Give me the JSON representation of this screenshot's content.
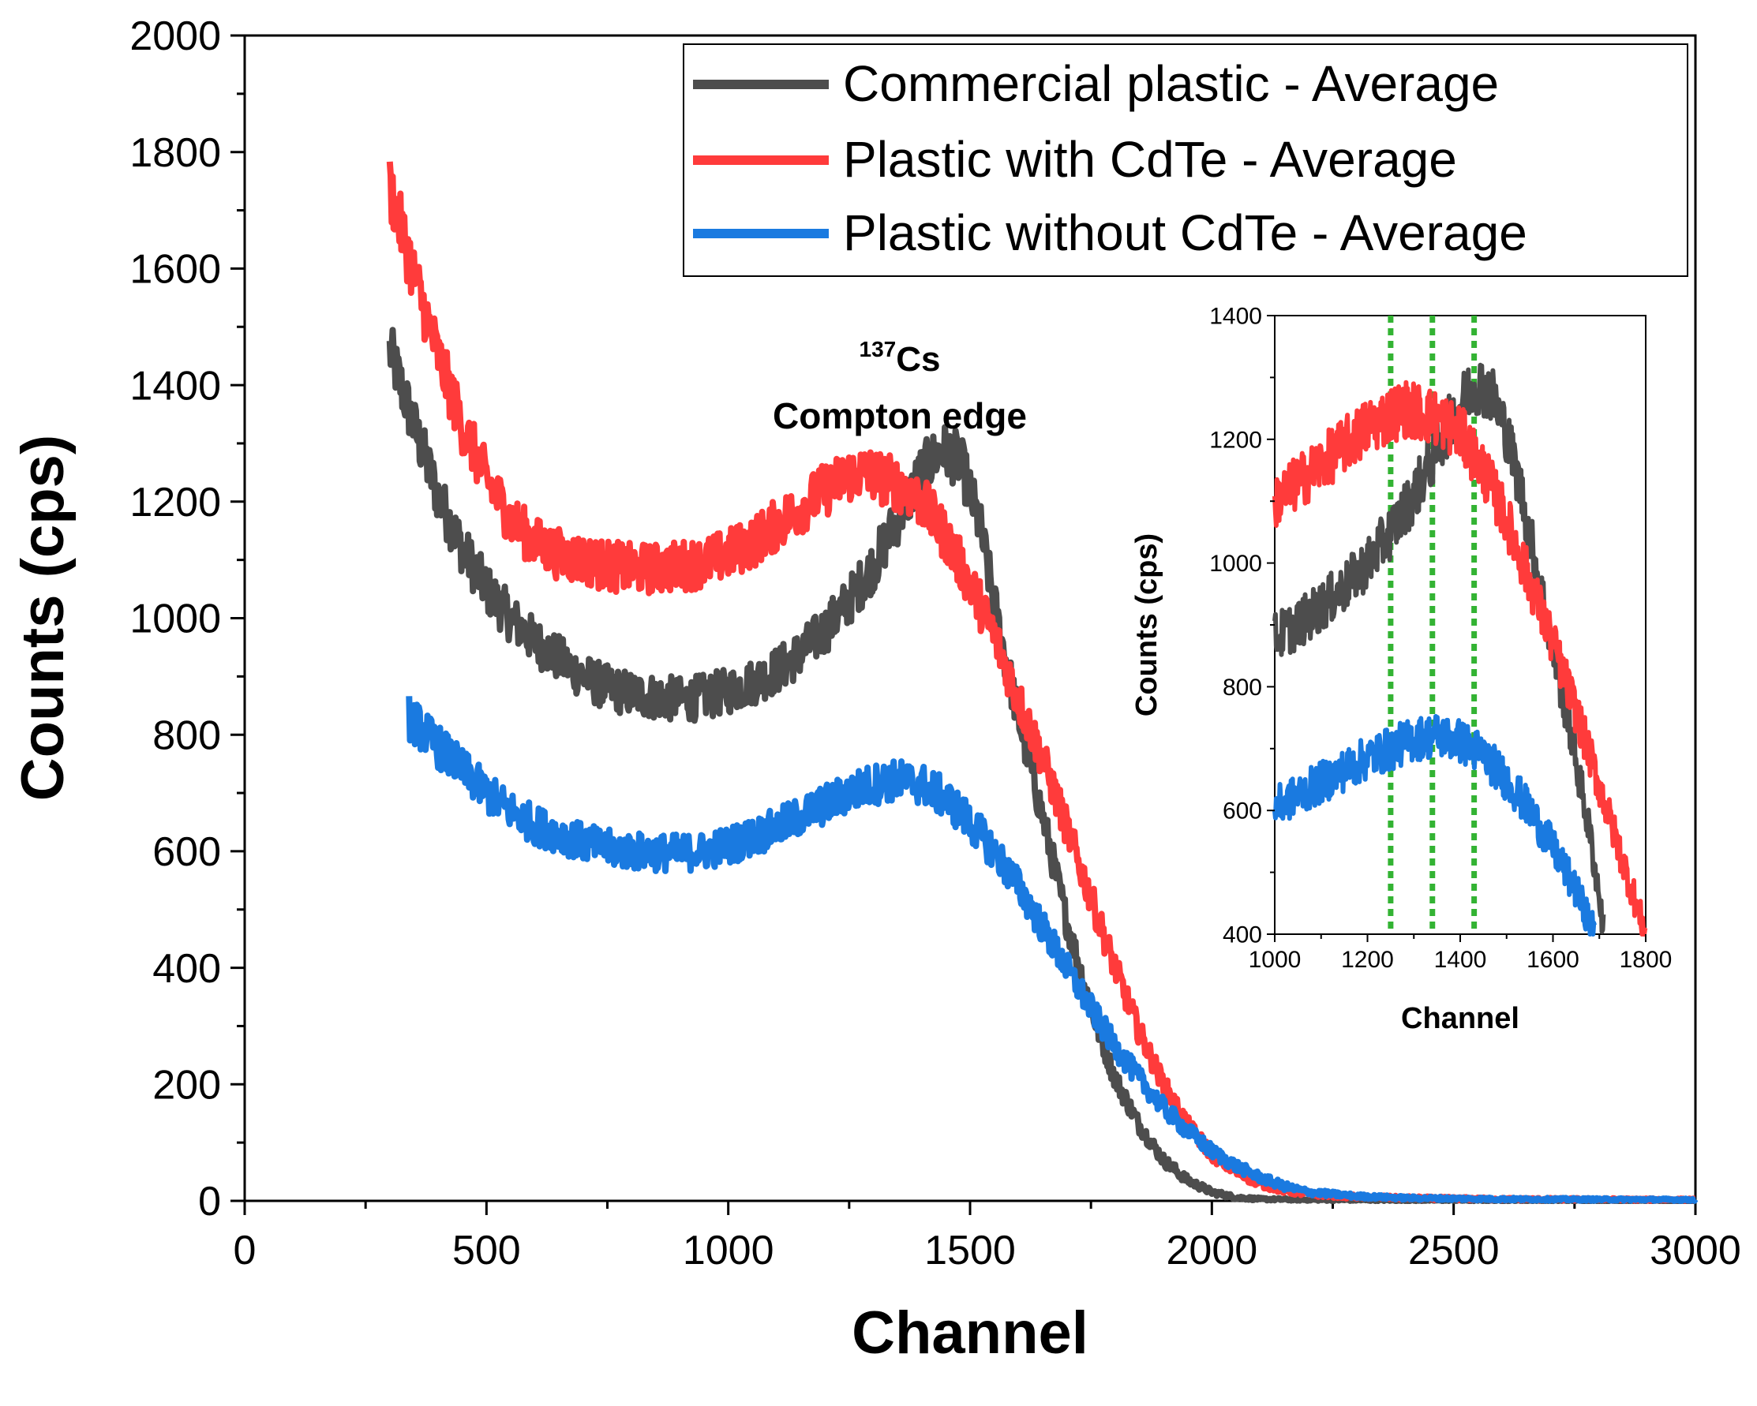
{
  "chart_data": [
    {
      "type": "line",
      "title": "",
      "xlabel": "Channel",
      "ylabel": "Counts (cps)",
      "xlim": [
        0,
        3000
      ],
      "ylim": [
        0,
        2000
      ],
      "xticks": [
        0,
        500,
        1000,
        1500,
        2000,
        2500,
        3000
      ],
      "yticks": [
        0,
        200,
        400,
        600,
        800,
        1000,
        1200,
        1400,
        1600,
        1800,
        2000
      ],
      "grid": false,
      "legend_position": "top-right",
      "annotation": {
        "superscript": "137",
        "isotope": "Cs",
        "line2": "Compton edge"
      },
      "series": [
        {
          "name": "Commercial plastic - Average",
          "color": "#4d4d4d",
          "points": [
            [
              300,
              1460
            ],
            [
              350,
              1330
            ],
            [
              400,
              1210
            ],
            [
              450,
              1120
            ],
            [
              500,
              1050
            ],
            [
              550,
              1000
            ],
            [
              600,
              960
            ],
            [
              650,
              930
            ],
            [
              700,
              900
            ],
            [
              750,
              880
            ],
            [
              800,
              870
            ],
            [
              850,
              865
            ],
            [
              900,
              860
            ],
            [
              950,
              865
            ],
            [
              1000,
              875
            ],
            [
              1050,
              890
            ],
            [
              1100,
              910
            ],
            [
              1150,
              940
            ],
            [
              1200,
              980
            ],
            [
              1250,
              1030
            ],
            [
              1300,
              1090
            ],
            [
              1350,
              1170
            ],
            [
              1400,
              1250
            ],
            [
              1440,
              1290
            ],
            [
              1480,
              1270
            ],
            [
              1520,
              1160
            ],
            [
              1560,
              980
            ],
            [
              1600,
              830
            ],
            [
              1650,
              660
            ],
            [
              1700,
              480
            ],
            [
              1750,
              330
            ],
            [
              1800,
              210
            ],
            [
              1850,
              130
            ],
            [
              1900,
              70
            ],
            [
              1950,
              35
            ],
            [
              2000,
              15
            ],
            [
              2050,
              6
            ],
            [
              2100,
              3
            ],
            [
              2200,
              2
            ],
            [
              2400,
              1
            ],
            [
              3000,
              0
            ]
          ]
        },
        {
          "name": "Plastic with CdTe - Average",
          "color": "#ff3b3b",
          "points": [
            [
              300,
              1740
            ],
            [
              350,
              1590
            ],
            [
              400,
              1450
            ],
            [
              450,
              1330
            ],
            [
              500,
              1240
            ],
            [
              550,
              1170
            ],
            [
              600,
              1130
            ],
            [
              650,
              1110
            ],
            [
              700,
              1100
            ],
            [
              750,
              1090
            ],
            [
              800,
              1085
            ],
            [
              850,
              1085
            ],
            [
              900,
              1090
            ],
            [
              950,
              1095
            ],
            [
              1000,
              1110
            ],
            [
              1050,
              1130
            ],
            [
              1100,
              1160
            ],
            [
              1150,
              1190
            ],
            [
              1200,
              1220
            ],
            [
              1250,
              1245
            ],
            [
              1280,
              1250
            ],
            [
              1320,
              1240
            ],
            [
              1360,
              1225
            ],
            [
              1400,
              1200
            ],
            [
              1450,
              1140
            ],
            [
              1500,
              1060
            ],
            [
              1550,
              970
            ],
            [
              1600,
              860
            ],
            [
              1650,
              760
            ],
            [
              1700,
              640
            ],
            [
              1750,
              520
            ],
            [
              1800,
              400
            ],
            [
              1850,
              290
            ],
            [
              1900,
              200
            ],
            [
              1950,
              130
            ],
            [
              2000,
              80
            ],
            [
              2050,
              50
            ],
            [
              2100,
              30
            ],
            [
              2150,
              18
            ],
            [
              2200,
              12
            ],
            [
              2300,
              7
            ],
            [
              2400,
              5
            ],
            [
              2600,
              3
            ],
            [
              3000,
              2
            ]
          ]
        },
        {
          "name": "Plastic without CdTe - Average",
          "color": "#1a7ae0",
          "points": [
            [
              340,
              830
            ],
            [
              400,
              780
            ],
            [
              450,
              740
            ],
            [
              500,
              700
            ],
            [
              550,
              670
            ],
            [
              600,
              645
            ],
            [
              650,
              630
            ],
            [
              700,
              615
            ],
            [
              750,
              605
            ],
            [
              800,
              600
            ],
            [
              850,
              598
            ],
            [
              900,
              597
            ],
            [
              950,
              600
            ],
            [
              1000,
              610
            ],
            [
              1050,
              625
            ],
            [
              1100,
              640
            ],
            [
              1150,
              660
            ],
            [
              1200,
              680
            ],
            [
              1250,
              700
            ],
            [
              1300,
              715
            ],
            [
              1350,
              722
            ],
            [
              1400,
              715
            ],
            [
              1450,
              690
            ],
            [
              1500,
              650
            ],
            [
              1550,
              600
            ],
            [
              1600,
              540
            ],
            [
              1650,
              470
            ],
            [
              1700,
              400
            ],
            [
              1750,
              330
            ],
            [
              1800,
              265
            ],
            [
              1850,
              210
            ],
            [
              1900,
              160
            ],
            [
              1950,
              120
            ],
            [
              2000,
              85
            ],
            [
              2050,
              60
            ],
            [
              2100,
              40
            ],
            [
              2150,
              25
            ],
            [
              2200,
              15
            ],
            [
              2300,
              8
            ],
            [
              2400,
              5
            ],
            [
              2600,
              3
            ],
            [
              3000,
              2
            ]
          ]
        }
      ]
    },
    {
      "type": "line",
      "title": "",
      "xlabel": "Channel",
      "ylabel": "Counts (cps)",
      "xlim": [
        1000,
        1800
      ],
      "ylim": [
        400,
        1400
      ],
      "xticks": [
        1000,
        1200,
        1400,
        1600,
        1800
      ],
      "yticks": [
        400,
        600,
        800,
        1000,
        1200,
        1400
      ],
      "grid": false,
      "vertical_markers": [
        1250,
        1340,
        1430
      ],
      "marker_color": "#33b333",
      "series": [
        {
          "name": "Commercial plastic - Average",
          "color": "#4d4d4d",
          "points": [
            [
              1000,
              880
            ],
            [
              1050,
              900
            ],
            [
              1100,
              930
            ],
            [
              1150,
              960
            ],
            [
              1200,
              1000
            ],
            [
              1250,
              1050
            ],
            [
              1300,
              1110
            ],
            [
              1340,
              1170
            ],
            [
              1380,
              1230
            ],
            [
              1420,
              1280
            ],
            [
              1440,
              1290
            ],
            [
              1470,
              1270
            ],
            [
              1500,
              1210
            ],
            [
              1530,
              1120
            ],
            [
              1560,
              1010
            ],
            [
              1600,
              860
            ],
            [
              1640,
              720
            ],
            [
              1680,
              560
            ],
            [
              1700,
              460
            ],
            [
              1710,
              400
            ]
          ]
        },
        {
          "name": "Plastic with CdTe - Average",
          "color": "#ff3b3b",
          "points": [
            [
              1000,
              1100
            ],
            [
              1050,
              1130
            ],
            [
              1100,
              1160
            ],
            [
              1150,
              1190
            ],
            [
              1200,
              1220
            ],
            [
              1250,
              1240
            ],
            [
              1280,
              1250
            ],
            [
              1320,
              1242
            ],
            [
              1360,
              1230
            ],
            [
              1400,
              1210
            ],
            [
              1450,
              1150
            ],
            [
              1500,
              1070
            ],
            [
              1550,
              970
            ],
            [
              1600,
              870
            ],
            [
              1650,
              760
            ],
            [
              1700,
              640
            ],
            [
              1750,
              520
            ],
            [
              1800,
              400
            ]
          ]
        },
        {
          "name": "Plastic without CdTe - Average",
          "color": "#1a7ae0",
          "points": [
            [
              1000,
              605
            ],
            [
              1050,
              625
            ],
            [
              1100,
              645
            ],
            [
              1150,
              665
            ],
            [
              1200,
              685
            ],
            [
              1250,
              700
            ],
            [
              1300,
              715
            ],
            [
              1350,
              722
            ],
            [
              1400,
              712
            ],
            [
              1450,
              690
            ],
            [
              1500,
              650
            ],
            [
              1550,
              600
            ],
            [
              1600,
              540
            ],
            [
              1650,
              470
            ],
            [
              1680,
              420
            ],
            [
              1690,
              400
            ]
          ]
        }
      ]
    }
  ]
}
